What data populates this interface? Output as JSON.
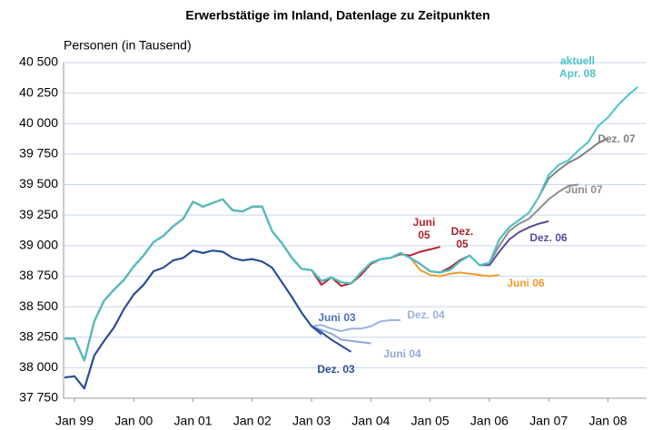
{
  "chart_data": {
    "type": "line",
    "title": "Erwerbstätige im Inland, Datenlage zu Zeitpunkten",
    "y_label": "Personen (in Tausend)",
    "categories": [
      null,
      "Jan 99",
      null,
      null,
      null,
      null,
      null,
      "Jan 00",
      null,
      null,
      null,
      null,
      null,
      "Jan 01",
      null,
      null,
      null,
      null,
      null,
      "Jan 02",
      null,
      null,
      null,
      null,
      null,
      "Jan 03",
      null,
      null,
      null,
      null,
      null,
      "Jan 04",
      null,
      null,
      null,
      null,
      null,
      "Jan 05",
      null,
      null,
      null,
      null,
      null,
      "Jan 06",
      null,
      null,
      null,
      null,
      null,
      "Jan 07",
      null,
      null,
      null,
      null,
      null,
      "Jan 08",
      null,
      null,
      null
    ],
    "ylim": [
      37750,
      40500
    ],
    "yticks": [
      {
        "value": 37750,
        "label": "37 750"
      },
      {
        "value": 38000,
        "label": "38 000"
      },
      {
        "value": 38250,
        "label": "38 250"
      },
      {
        "value": 38500,
        "label": "38 500"
      },
      {
        "value": 38750,
        "label": "38 750"
      },
      {
        "value": 39000,
        "label": "39 000"
      },
      {
        "value": 39250,
        "label": "39 250"
      },
      {
        "value": 39500,
        "label": "39 500"
      },
      {
        "value": 39750,
        "label": "39 750"
      },
      {
        "value": 40000,
        "label": "40 000"
      },
      {
        "value": 40250,
        "label": "40 250"
      },
      {
        "value": 40500,
        "label": "40 500"
      }
    ],
    "grid": true,
    "series": [
      {
        "name": "Dez. 04",
        "color": "#9bb2dc",
        "values": [
          37920,
          37930,
          37830,
          38100,
          38220,
          38330,
          38480,
          38600,
          38680,
          38790,
          38820,
          38880,
          38900,
          38960,
          38940,
          38960,
          38950,
          38900,
          38880,
          38890,
          38870,
          38820,
          38700,
          38580,
          38450,
          38340,
          38350,
          38320,
          38300,
          38320,
          38320,
          38340,
          38380,
          38390,
          38390,
          null,
          null,
          null,
          null,
          null,
          null,
          null,
          null,
          null,
          null,
          null,
          null,
          null,
          null,
          null,
          null,
          null,
          null,
          null,
          null,
          null,
          null,
          null,
          null
        ]
      },
      {
        "name": "Juni 04",
        "color": "#8fa8d8",
        "values": [
          37920,
          37930,
          37830,
          38100,
          38220,
          38330,
          38480,
          38600,
          38680,
          38790,
          38820,
          38880,
          38900,
          38960,
          38940,
          38960,
          38950,
          38900,
          38880,
          38890,
          38870,
          38820,
          38700,
          38580,
          38450,
          38340,
          38310,
          38280,
          38230,
          38220,
          38210,
          38200,
          null,
          null,
          null,
          null,
          null,
          null,
          null,
          null,
          null,
          null,
          null,
          null,
          null,
          null,
          null,
          null,
          null,
          null,
          null,
          null,
          null,
          null,
          null,
          null,
          null,
          null,
          null
        ]
      },
      {
        "name": "Juni 03",
        "color": "#4a70b8",
        "values": [
          37920,
          37930,
          37830,
          38100,
          38220,
          38330,
          38480,
          38600,
          38680,
          38790,
          38820,
          38880,
          38900,
          38960,
          38940,
          38960,
          38950,
          38900,
          38880,
          38890,
          38870,
          38820,
          38700,
          38580,
          38450,
          38340,
          38270,
          null,
          null,
          null,
          null,
          null,
          null,
          null,
          null,
          null,
          null,
          null,
          null,
          null,
          null,
          null,
          null,
          null,
          null,
          null,
          null,
          null,
          null,
          null,
          null,
          null,
          null,
          null,
          null,
          null,
          null,
          null,
          null
        ]
      },
      {
        "name": "Dez. 03",
        "color": "#2d4e94",
        "values": [
          37920,
          37930,
          37830,
          38100,
          38220,
          38330,
          38480,
          38600,
          38680,
          38790,
          38820,
          38880,
          38900,
          38960,
          38940,
          38960,
          38950,
          38900,
          38880,
          38890,
          38870,
          38820,
          38700,
          38580,
          38450,
          38340,
          38290,
          38230,
          38180,
          38130,
          null,
          null,
          null,
          null,
          null,
          null,
          null,
          null,
          null,
          null,
          null,
          null,
          null,
          null,
          null,
          null,
          null,
          null,
          null,
          null,
          null,
          null,
          null,
          null,
          null,
          null,
          null,
          null,
          null
        ]
      },
      {
        "name": "Juni 05",
        "color": "#b8232e",
        "values": [
          38240,
          38240,
          38060,
          38380,
          38550,
          38640,
          38720,
          38830,
          38920,
          39030,
          39080,
          39160,
          39220,
          39360,
          39320,
          39350,
          39380,
          39290,
          39280,
          39320,
          39320,
          39120,
          39020,
          38900,
          38810,
          38800,
          38680,
          38740,
          38670,
          38690,
          38760,
          38850,
          38890,
          38900,
          38930,
          38920,
          38950,
          38970,
          38990,
          null,
          null,
          null,
          null,
          null,
          null,
          null,
          null,
          null,
          null,
          null,
          null,
          null,
          null,
          null,
          null,
          null,
          null,
          null,
          null
        ]
      },
      {
        "name": "Dez. 05",
        "color": "#a8222c",
        "values": [
          38240,
          38240,
          38060,
          38380,
          38550,
          38640,
          38720,
          38830,
          38920,
          39030,
          39080,
          39160,
          39220,
          39360,
          39320,
          39350,
          39380,
          39290,
          39280,
          39320,
          39320,
          39120,
          39020,
          38900,
          38810,
          38800,
          38710,
          38740,
          38700,
          38690,
          38780,
          38860,
          38890,
          38900,
          38940,
          38900,
          38850,
          38790,
          38780,
          38820,
          38880,
          38920,
          null,
          null,
          null,
          null,
          null,
          null,
          null,
          null,
          null,
          null,
          null,
          null,
          null,
          null,
          null,
          null,
          null
        ]
      },
      {
        "name": "Juni 06",
        "color": "#f39a2e",
        "values": [
          38240,
          38240,
          38060,
          38380,
          38550,
          38640,
          38720,
          38830,
          38920,
          39030,
          39080,
          39160,
          39220,
          39360,
          39320,
          39350,
          39380,
          39290,
          39280,
          39320,
          39320,
          39120,
          39020,
          38900,
          38810,
          38800,
          38710,
          38740,
          38700,
          38690,
          38780,
          38860,
          38890,
          38900,
          38940,
          38900,
          38800,
          38760,
          38750,
          38770,
          38780,
          38770,
          38760,
          38750,
          38760,
          null,
          null,
          null,
          null,
          null,
          null,
          null,
          null,
          null,
          null,
          null,
          null,
          null,
          null
        ]
      },
      {
        "name": "Dez. 06",
        "color": "#5a4a9c",
        "values": [
          38240,
          38240,
          38060,
          38380,
          38550,
          38640,
          38720,
          38830,
          38920,
          39030,
          39080,
          39160,
          39220,
          39360,
          39320,
          39350,
          39380,
          39290,
          39280,
          39320,
          39320,
          39120,
          39020,
          38900,
          38810,
          38800,
          38710,
          38740,
          38700,
          38690,
          38780,
          38860,
          38890,
          38900,
          38940,
          38900,
          38850,
          38790,
          38780,
          38800,
          38870,
          38920,
          38840,
          38840,
          38950,
          39050,
          39110,
          39150,
          39180,
          39200,
          null,
          null,
          null,
          null,
          null,
          null,
          null,
          null,
          null
        ]
      },
      {
        "name": "Juni 07",
        "color": "#8d8d8d",
        "values": [
          38240,
          38240,
          38060,
          38380,
          38550,
          38640,
          38720,
          38830,
          38920,
          39030,
          39080,
          39160,
          39220,
          39360,
          39320,
          39350,
          39380,
          39290,
          39280,
          39320,
          39320,
          39120,
          39020,
          38900,
          38810,
          38800,
          38710,
          38740,
          38700,
          38690,
          38780,
          38860,
          38890,
          38900,
          38940,
          38900,
          38850,
          38790,
          38780,
          38800,
          38870,
          38920,
          38840,
          38860,
          39000,
          39120,
          39180,
          39220,
          39300,
          39380,
          39440,
          39490,
          39500,
          null,
          null,
          null,
          null,
          null,
          null
        ]
      },
      {
        "name": "Dez. 07",
        "color": "#808080",
        "values": [
          38240,
          38240,
          38060,
          38380,
          38550,
          38640,
          38720,
          38830,
          38920,
          39030,
          39080,
          39160,
          39220,
          39360,
          39320,
          39350,
          39380,
          39290,
          39280,
          39320,
          39320,
          39120,
          39020,
          38900,
          38810,
          38800,
          38710,
          38740,
          38700,
          38690,
          38780,
          38860,
          38890,
          38900,
          38940,
          38900,
          38850,
          38790,
          38780,
          38800,
          38870,
          38920,
          38840,
          38860,
          39050,
          39150,
          39210,
          39270,
          39400,
          39550,
          39620,
          39680,
          39720,
          39780,
          39840,
          39880,
          null,
          null,
          null
        ]
      },
      {
        "name": "aktuell Apr. 08",
        "color": "#4cc3c6",
        "values": [
          38240,
          38240,
          38060,
          38380,
          38550,
          38640,
          38720,
          38830,
          38920,
          39030,
          39080,
          39160,
          39220,
          39360,
          39320,
          39350,
          39380,
          39290,
          39280,
          39320,
          39320,
          39120,
          39020,
          38900,
          38810,
          38800,
          38710,
          38740,
          38700,
          38690,
          38780,
          38860,
          38890,
          38900,
          38940,
          38900,
          38850,
          38790,
          38780,
          38800,
          38870,
          38920,
          38840,
          38860,
          39050,
          39150,
          39210,
          39270,
          39400,
          39580,
          39660,
          39700,
          39780,
          39850,
          39980,
          40050,
          40150,
          40230,
          40300
        ]
      }
    ]
  }
}
